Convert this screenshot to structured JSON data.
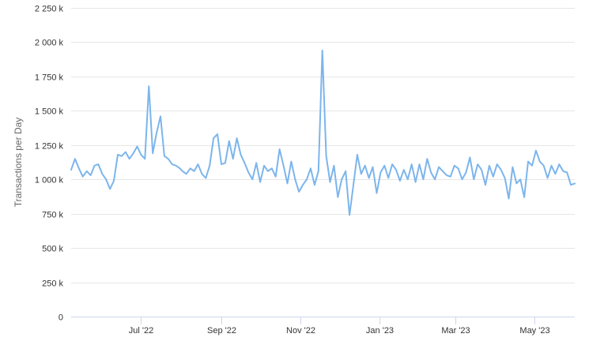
{
  "chart_data": {
    "type": "line",
    "title": "",
    "xlabel": "",
    "ylabel": "Transactions per Day",
    "ylim": [
      0,
      2250000
    ],
    "xlim": [
      "2022-05-08",
      "2023-06-01"
    ],
    "grid": true,
    "legend": "none",
    "colors": {
      "series": "#7cb5ec",
      "grid": "#e6e6e6",
      "axis": "#ccd6eb",
      "text": "#333333",
      "title": "#666666"
    },
    "y_ticks": [
      {
        "value": 0,
        "label": "0"
      },
      {
        "value": 250000,
        "label": "250 k"
      },
      {
        "value": 500000,
        "label": "500 k"
      },
      {
        "value": 750000,
        "label": "750 k"
      },
      {
        "value": 1000000,
        "label": "1 000 k"
      },
      {
        "value": 1250000,
        "label": "1 250 k"
      },
      {
        "value": 1500000,
        "label": "1 500 k"
      },
      {
        "value": 1750000,
        "label": "1 750 k"
      },
      {
        "value": 2000000,
        "label": "2 000 k"
      },
      {
        "value": 2250000,
        "label": "2 250 k"
      }
    ],
    "x_ticks": [
      {
        "date": "2022-07-01",
        "label": "Jul '22"
      },
      {
        "date": "2022-09-01",
        "label": "Sep '22"
      },
      {
        "date": "2022-11-01",
        "label": "Nov '22"
      },
      {
        "date": "2023-01-01",
        "label": "Jan '23"
      },
      {
        "date": "2023-03-01",
        "label": "Mar '23"
      },
      {
        "date": "2023-05-01",
        "label": "May '23"
      }
    ],
    "series": [
      {
        "x": [
          "2022-05-08",
          "2022-05-11",
          "2022-05-14",
          "2022-05-17",
          "2022-05-20",
          "2022-05-23",
          "2022-05-26",
          "2022-05-29",
          "2022-06-01",
          "2022-06-04",
          "2022-06-07",
          "2022-06-10",
          "2022-06-13",
          "2022-06-16",
          "2022-06-19",
          "2022-06-22",
          "2022-06-25",
          "2022-06-28",
          "2022-07-01",
          "2022-07-04",
          "2022-07-07",
          "2022-07-10",
          "2022-07-13",
          "2022-07-16",
          "2022-07-19",
          "2022-07-22",
          "2022-07-25",
          "2022-07-28",
          "2022-07-31",
          "2022-08-02",
          "2022-08-05",
          "2022-08-08",
          "2022-08-11",
          "2022-08-14",
          "2022-08-17",
          "2022-08-20",
          "2022-08-23",
          "2022-08-26",
          "2022-08-29",
          "2022-09-01",
          "2022-09-04",
          "2022-09-07",
          "2022-09-10",
          "2022-09-13",
          "2022-09-16",
          "2022-09-19",
          "2022-09-22",
          "2022-09-25",
          "2022-09-28",
          "2022-10-01",
          "2022-10-04",
          "2022-10-07",
          "2022-10-10",
          "2022-10-13",
          "2022-10-16",
          "2022-10-19",
          "2022-10-22",
          "2022-10-25",
          "2022-10-28",
          "2022-10-31",
          "2022-11-03",
          "2022-11-06",
          "2022-11-09",
          "2022-11-12",
          "2022-11-15",
          "2022-11-18",
          "2022-11-21",
          "2022-11-24",
          "2022-11-27",
          "2022-11-30",
          "2022-12-03",
          "2022-12-06",
          "2022-12-09",
          "2022-12-12",
          "2022-12-15",
          "2022-12-18",
          "2022-12-21",
          "2022-12-24",
          "2022-12-27",
          "2022-12-30",
          "2023-01-02",
          "2023-01-05",
          "2023-01-08",
          "2023-01-11",
          "2023-01-14",
          "2023-01-17",
          "2023-01-20",
          "2023-01-23",
          "2023-01-26",
          "2023-01-29",
          "2023-02-01",
          "2023-02-04",
          "2023-02-07",
          "2023-02-10",
          "2023-02-13",
          "2023-02-16",
          "2023-02-19",
          "2023-02-22",
          "2023-02-25",
          "2023-02-28",
          "2023-03-03",
          "2023-03-06",
          "2023-03-09",
          "2023-03-12",
          "2023-03-15",
          "2023-03-18",
          "2023-03-21",
          "2023-03-24",
          "2023-03-27",
          "2023-03-30",
          "2023-04-02",
          "2023-04-05",
          "2023-04-08",
          "2023-04-11",
          "2023-04-14",
          "2023-04-17",
          "2023-04-20",
          "2023-04-23",
          "2023-04-26",
          "2023-04-29",
          "2023-05-02",
          "2023-05-05",
          "2023-05-08",
          "2023-05-11",
          "2023-05-14",
          "2023-05-17",
          "2023-05-20",
          "2023-05-23",
          "2023-05-26",
          "2023-05-29",
          "2023-06-01"
        ],
        "values": [
          1070000,
          1150000,
          1080000,
          1020000,
          1060000,
          1030000,
          1100000,
          1110000,
          1040000,
          1000000,
          930000,
          990000,
          1180000,
          1170000,
          1200000,
          1150000,
          1190000,
          1240000,
          1180000,
          1150000,
          1680000,
          1190000,
          1340000,
          1460000,
          1170000,
          1150000,
          1110000,
          1100000,
          1080000,
          1060000,
          1040000,
          1080000,
          1060000,
          1110000,
          1040000,
          1010000,
          1100000,
          1300000,
          1330000,
          1110000,
          1120000,
          1280000,
          1150000,
          1300000,
          1180000,
          1120000,
          1050000,
          1000000,
          1120000,
          980000,
          1100000,
          1060000,
          1080000,
          1020000,
          1220000,
          1100000,
          970000,
          1130000,
          1000000,
          910000,
          960000,
          1000000,
          1080000,
          960000,
          1060000,
          1940000,
          1170000,
          980000,
          1100000,
          870000,
          1000000,
          1060000,
          740000,
          960000,
          1180000,
          1040000,
          1100000,
          1010000,
          1090000,
          900000,
          1050000,
          1100000,
          1010000,
          1110000,
          1070000,
          990000,
          1070000,
          1000000,
          1110000,
          980000,
          1110000,
          1000000,
          1150000,
          1050000,
          1000000,
          1090000,
          1060000,
          1030000,
          1020000,
          1100000,
          1080000,
          1000000,
          1050000,
          1160000,
          1000000,
          1110000,
          1070000,
          960000,
          1100000,
          1020000,
          1110000,
          1070000,
          1010000,
          860000,
          1090000,
          970000,
          1000000,
          870000,
          1130000,
          1100000,
          1210000,
          1130000,
          1100000,
          1010000,
          1100000,
          1040000,
          1110000,
          1060000,
          1050000,
          960000,
          970000
        ]
      }
    ]
  }
}
